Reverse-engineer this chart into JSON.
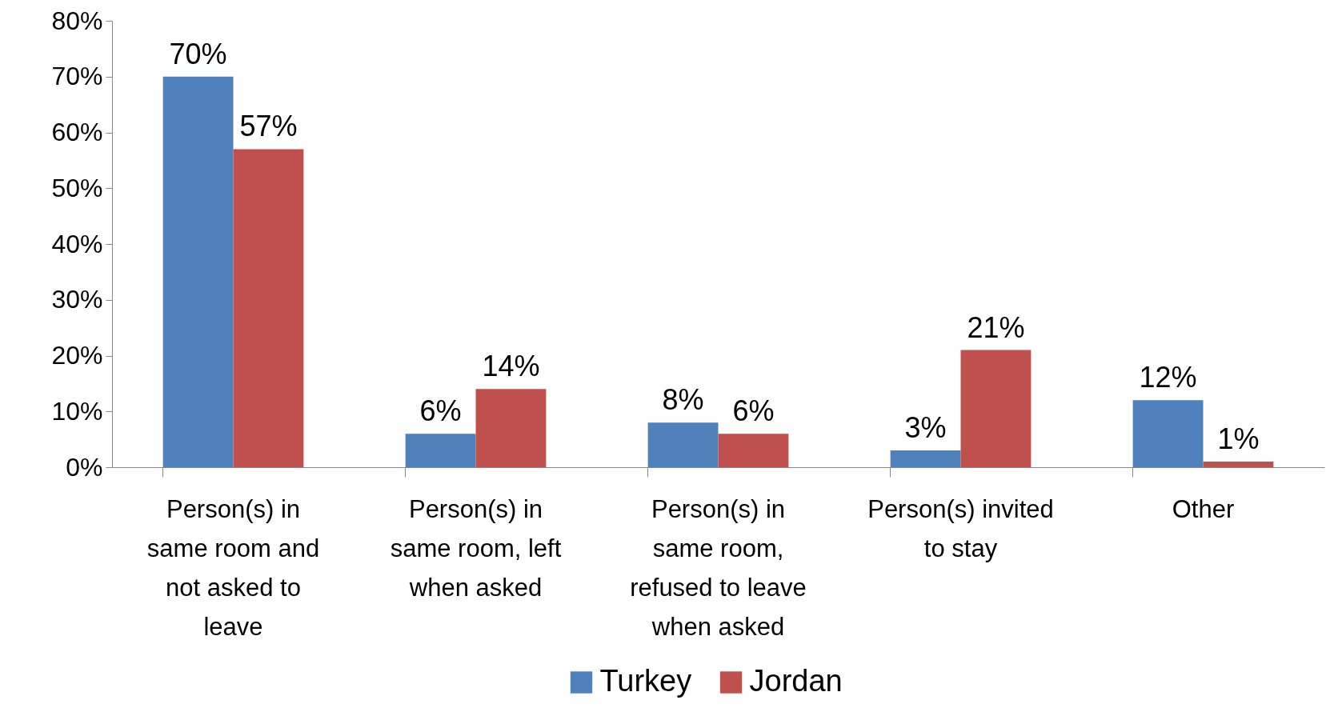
{
  "chart_data": {
    "type": "bar",
    "categories": [
      "Person(s) in same room and not asked to leave",
      "Person(s) in same room, left when asked",
      "Person(s) in same room, refused to leave when asked",
      "Person(s) invited to stay",
      "Other"
    ],
    "series": [
      {
        "name": "Turkey",
        "color": "#4f81bd",
        "values": [
          70,
          6,
          8,
          3,
          12
        ],
        "value_labels": [
          "70%",
          "6%",
          "8%",
          "3%",
          "12%"
        ]
      },
      {
        "name": "Jordan",
        "color": "#c0504d",
        "values": [
          57,
          14,
          6,
          21,
          1
        ],
        "value_labels": [
          "57%",
          "14%",
          "6%",
          "21%",
          "1%"
        ]
      }
    ],
    "ylim": [
      0,
      80
    ],
    "yticks": [
      {
        "value": 0,
        "label": "0%"
      },
      {
        "value": 10,
        "label": "10%"
      },
      {
        "value": 20,
        "label": "20%"
      },
      {
        "value": 30,
        "label": "30%"
      },
      {
        "value": 40,
        "label": "40%"
      },
      {
        "value": 50,
        "label": "50%"
      },
      {
        "value": 60,
        "label": "60%"
      },
      {
        "value": 70,
        "label": "70%"
      },
      {
        "value": 80,
        "label": "80%"
      }
    ],
    "grid": false,
    "legend": "bottom"
  }
}
